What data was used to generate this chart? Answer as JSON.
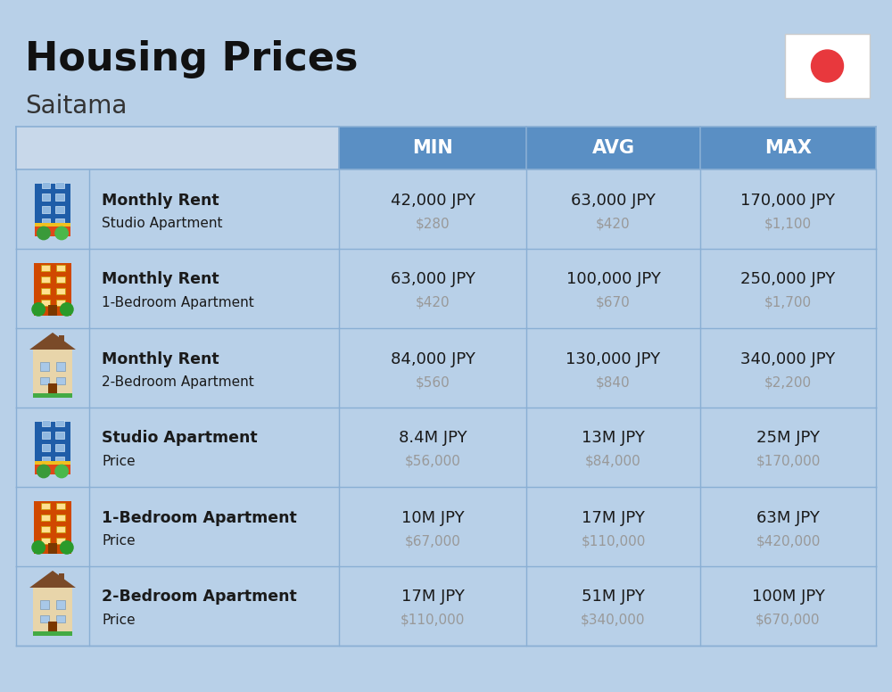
{
  "title": "Housing Prices",
  "subtitle": "Saitama",
  "bg_color": "#b8d0e8",
  "header_bg_color": "#5a8fc4",
  "header_text_color": "#ffffff",
  "cell_line_color": "#8aafd4",
  "col_headers": [
    "MIN",
    "AVG",
    "MAX"
  ],
  "rows": [
    {
      "label_bold": "Monthly Rent",
      "label_sub": "Studio Apartment",
      "icon_type": "studio_blue",
      "min_jpy": "42,000 JPY",
      "min_usd": "$280",
      "avg_jpy": "63,000 JPY",
      "avg_usd": "$420",
      "max_jpy": "170,000 JPY",
      "max_usd": "$1,100"
    },
    {
      "label_bold": "Monthly Rent",
      "label_sub": "1-Bedroom Apartment",
      "icon_type": "one_bed_orange",
      "min_jpy": "63,000 JPY",
      "min_usd": "$420",
      "avg_jpy": "100,000 JPY",
      "avg_usd": "$670",
      "max_jpy": "250,000 JPY",
      "max_usd": "$1,700"
    },
    {
      "label_bold": "Monthly Rent",
      "label_sub": "2-Bedroom Apartment",
      "icon_type": "two_bed_tan",
      "min_jpy": "84,000 JPY",
      "min_usd": "$560",
      "avg_jpy": "130,000 JPY",
      "avg_usd": "$840",
      "max_jpy": "340,000 JPY",
      "max_usd": "$2,200"
    },
    {
      "label_bold": "Studio Apartment",
      "label_sub": "Price",
      "icon_type": "studio_blue",
      "min_jpy": "8.4M JPY",
      "min_usd": "$56,000",
      "avg_jpy": "13M JPY",
      "avg_usd": "$84,000",
      "max_jpy": "25M JPY",
      "max_usd": "$170,000"
    },
    {
      "label_bold": "1-Bedroom Apartment",
      "label_sub": "Price",
      "icon_type": "one_bed_orange",
      "min_jpy": "10M JPY",
      "min_usd": "$67,000",
      "avg_jpy": "17M JPY",
      "avg_usd": "$110,000",
      "max_jpy": "63M JPY",
      "max_usd": "$420,000"
    },
    {
      "label_bold": "2-Bedroom Apartment",
      "label_sub": "Price",
      "icon_type": "two_bed_tan",
      "min_jpy": "17M JPY",
      "min_usd": "$110,000",
      "avg_jpy": "51M JPY",
      "avg_usd": "$340,000",
      "max_jpy": "100M JPY",
      "max_usd": "$670,000"
    }
  ],
  "text_color_main": "#1a1a1a",
  "text_color_usd": "#999999",
  "flag_bg": "#ffffff",
  "flag_circle_color": "#e8383d"
}
